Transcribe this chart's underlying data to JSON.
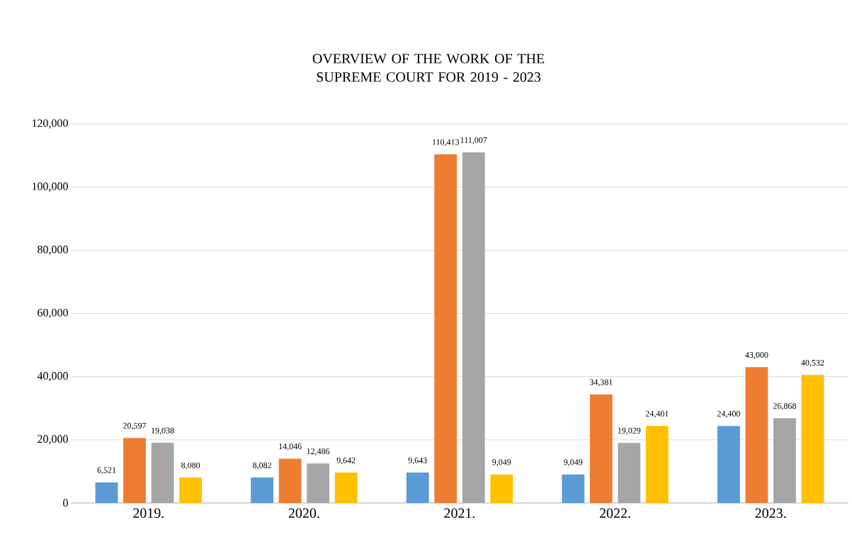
{
  "chart_data": {
    "type": "bar",
    "title": "OVERVIEW OF THE WORK OF THE SUPREME COURT FOR 2019 - 2023",
    "categories": [
      "2019.",
      "2020.",
      "2021.",
      "2022.",
      "2023."
    ],
    "series": [
      {
        "color": "#5b9bd5",
        "values": [
          6521,
          8082,
          9643,
          9049,
          24400
        ],
        "value_labels": [
          "6,521",
          "8,082",
          "9,643",
          "9,049",
          "24,400"
        ]
      },
      {
        "color": "#ed7d31",
        "values": [
          20597,
          14046,
          110413,
          34381,
          43000
        ],
        "value_labels": [
          "20,597",
          "14,046",
          "110,413",
          "34,381",
          "43,000"
        ]
      },
      {
        "color": "#a5a5a5",
        "values": [
          19038,
          12486,
          111007,
          19029,
          26868
        ],
        "value_labels": [
          "19,038",
          "12,486",
          "111,007",
          "19,029",
          "26,868"
        ]
      },
      {
        "color": "#ffc000",
        "values": [
          8080,
          9642,
          9049,
          24401,
          40532
        ],
        "value_labels": [
          "8,080",
          "9,642",
          "9,049",
          "24,401",
          "40,532"
        ]
      }
    ],
    "ylim": [
      0,
      120000
    ],
    "yticks": [
      {
        "value": 0,
        "label": "0"
      },
      {
        "value": 20000,
        "label": "20,000"
      },
      {
        "value": 40000,
        "label": "40,000"
      },
      {
        "value": 60000,
        "label": "60,000"
      },
      {
        "value": 80000,
        "label": "80,000"
      },
      {
        "value": 100000,
        "label": "100,000"
      },
      {
        "value": 120000,
        "label": "120,000"
      }
    ],
    "grid": "y"
  }
}
